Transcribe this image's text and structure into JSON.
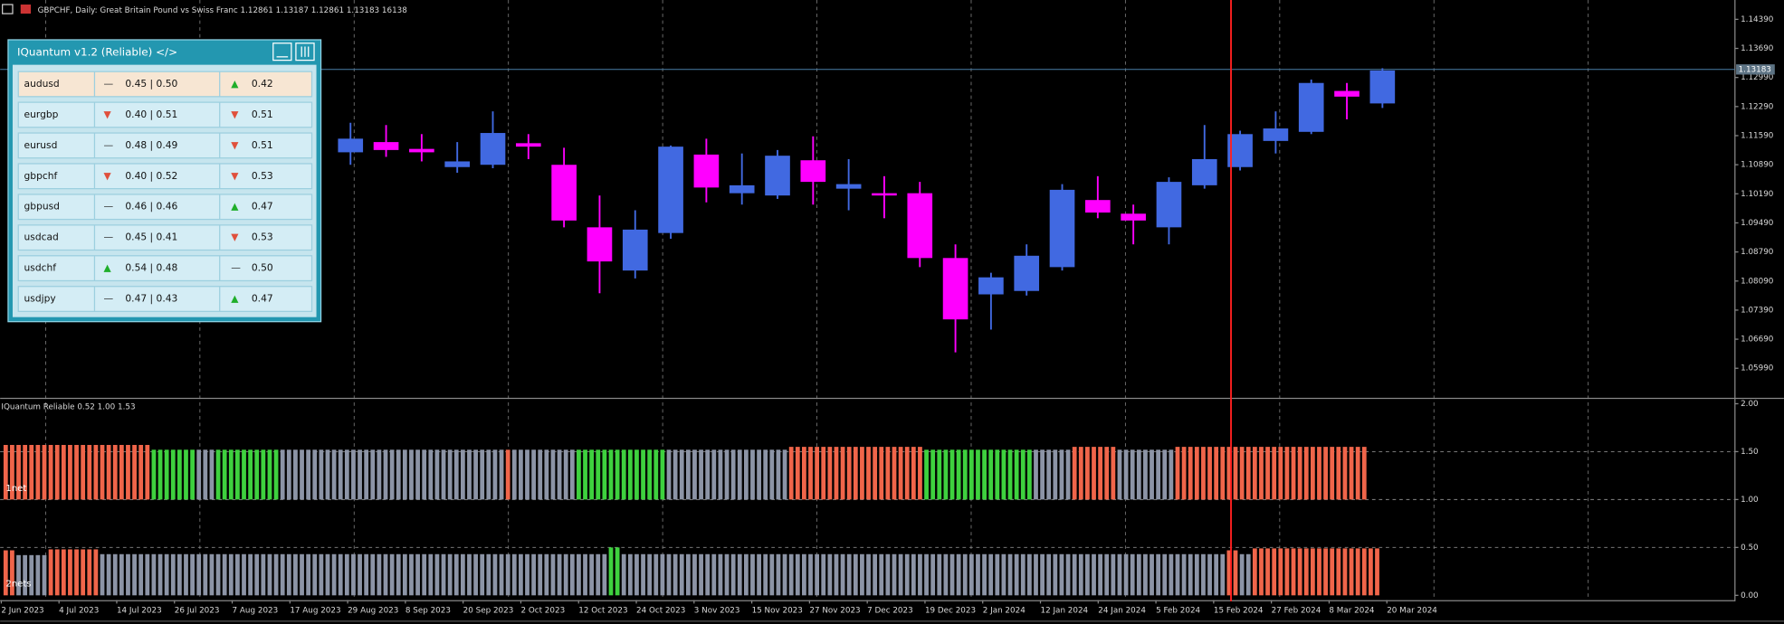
{
  "header": {
    "text": "GBPCHF, Daily:  Great Britain Pound vs Swiss Franc  1.12861 1.13187 1.12861 1.13183  16138"
  },
  "price_chart": {
    "type": "candlestick",
    "up_color": "#4169e1",
    "down_color": "#ff00ff",
    "ylim": [
      1.05279,
      1.14855
    ],
    "yticks": [
      {
        "value": 1.1439,
        "label": "1.14390"
      },
      {
        "value": 1.1369,
        "label": "1.13690"
      },
      {
        "value": 1.1299,
        "label": "1.12990"
      },
      {
        "value": 1.1229,
        "label": "1.12290"
      },
      {
        "value": 1.1159,
        "label": "1.11590"
      },
      {
        "value": 1.1089,
        "label": "1.10890"
      },
      {
        "value": 1.1019,
        "label": "1.10190"
      },
      {
        "value": 1.0949,
        "label": "1.09490"
      },
      {
        "value": 1.0879,
        "label": "1.08790"
      },
      {
        "value": 1.0809,
        "label": "1.08090"
      },
      {
        "value": 1.0739,
        "label": "1.07390"
      },
      {
        "value": 1.0669,
        "label": "1.06690"
      },
      {
        "value": 1.0599,
        "label": "1.05990"
      }
    ],
    "current_price": {
      "value": 1.13183,
      "label": "1.13183"
    },
    "candles": [
      {
        "open": 1.11189,
        "high": 1.119,
        "low": 1.10888,
        "close": 1.11517
      },
      {
        "open": 1.11435,
        "high": 1.11845,
        "low": 1.11079,
        "close": 1.11244
      },
      {
        "open": 1.11271,
        "high": 1.11627,
        "low": 1.1097,
        "close": 1.11189
      },
      {
        "open": 1.10833,
        "high": 1.11435,
        "low": 1.10696,
        "close": 1.1097
      },
      {
        "open": 1.10888,
        "high": 1.12174,
        "low": 1.10806,
        "close": 1.11654
      },
      {
        "open": 1.11408,
        "high": 1.11627,
        "low": 1.11025,
        "close": 1.11325
      },
      {
        "open": 1.10888,
        "high": 1.11298,
        "low": 1.09383,
        "close": 1.09547
      },
      {
        "open": 1.09383,
        "high": 1.10149,
        "low": 1.07796,
        "close": 1.08562
      },
      {
        "open": 1.08343,
        "high": 1.09793,
        "low": 1.08152,
        "close": 1.09328
      },
      {
        "open": 1.09246,
        "high": 1.11353,
        "low": 1.09109,
        "close": 1.11325
      },
      {
        "open": 1.11134,
        "high": 1.11517,
        "low": 1.09985,
        "close": 1.10341
      },
      {
        "open": 1.10204,
        "high": 1.11161,
        "low": 1.0993,
        "close": 1.10395
      },
      {
        "open": 1.10149,
        "high": 1.11244,
        "low": 1.10067,
        "close": 1.11107
      },
      {
        "open": 1.10997,
        "high": 1.11572,
        "low": 1.0993,
        "close": 1.10477
      },
      {
        "open": 1.10313,
        "high": 1.11025,
        "low": 1.09793,
        "close": 1.10423
      },
      {
        "open": 1.10204,
        "high": 1.10614,
        "low": 1.09602,
        "close": 1.10149
      },
      {
        "open": 1.10204,
        "high": 1.10477,
        "low": 1.08425,
        "close": 1.08644
      },
      {
        "open": 1.08644,
        "high": 1.08973,
        "low": 1.06373,
        "close": 1.07167
      },
      {
        "open": 1.07769,
        "high": 1.08289,
        "low": 1.06921,
        "close": 1.08179
      },
      {
        "open": 1.07851,
        "high": 1.08973,
        "low": 1.07741,
        "close": 1.08699
      },
      {
        "open": 1.08425,
        "high": 1.10423,
        "low": 1.08343,
        "close": 1.10286
      },
      {
        "open": 1.1004,
        "high": 1.10614,
        "low": 1.09602,
        "close": 1.09739
      },
      {
        "open": 1.09711,
        "high": 1.0993,
        "low": 1.08973,
        "close": 1.09547
      },
      {
        "open": 1.09383,
        "high": 1.10587,
        "low": 1.08973,
        "close": 1.10477
      },
      {
        "open": 1.10395,
        "high": 1.11845,
        "low": 1.10313,
        "close": 1.11025
      },
      {
        "open": 1.10833,
        "high": 1.11709,
        "low": 1.10751,
        "close": 1.11627
      },
      {
        "open": 1.11462,
        "high": 1.12174,
        "low": 1.11161,
        "close": 1.11763
      },
      {
        "open": 1.11681,
        "high": 1.1294,
        "low": 1.11627,
        "close": 1.12858
      },
      {
        "open": 1.12666,
        "high": 1.12858,
        "low": 1.11982,
        "close": 1.12529
      },
      {
        "open": 1.12365,
        "high": 1.13213,
        "low": 1.12256,
        "close": 1.13159
      }
    ]
  },
  "time_axis": {
    "labels": [
      "2 Jun 2023",
      "4 Jul 2023",
      "14 Jul 2023",
      "26 Jul 2023",
      "7 Aug 2023",
      "17 Aug 2023",
      "29 Aug 2023",
      "8 Sep 2023",
      "20 Sep 2023",
      "2 Oct 2023",
      "12 Oct 2023",
      "24 Oct 2023",
      "3 Nov 2023",
      "15 Nov 2023",
      "27 Nov 2023",
      "7 Dec 2023",
      "19 Dec 2023",
      "2 Jan 2024",
      "12 Jan 2024",
      "24 Jan 2024",
      "5 Feb 2024",
      "15 Feb 2024",
      "27 Feb 2024",
      "8 Mar 2024",
      "20 Mar 2024"
    ]
  },
  "indicator": {
    "title": "IQuantum Reliable 0.52 1.00 1.53",
    "ylim": [
      -0.05,
      2.05
    ],
    "grid": true,
    "yticks": [
      {
        "value": 2,
        "label": "2.00"
      },
      {
        "value": 1.5,
        "label": "1.50"
      },
      {
        "value": 1,
        "label": "1.00"
      },
      {
        "value": 0.5,
        "label": "0.50"
      },
      {
        "value": 0,
        "label": "0.00"
      }
    ],
    "rows": [
      {
        "label": "1net",
        "base": 1,
        "runs": [
          {
            "color": "#f0654a",
            "count": 23,
            "value": 1.57
          },
          {
            "color": "#3ed13e",
            "count": 7,
            "value": 1.52
          },
          {
            "color": "#8c94a6",
            "count": 3,
            "value": 1.52
          },
          {
            "color": "#3ed13e",
            "count": 10,
            "value": 1.52
          },
          {
            "color": "#8c94a6",
            "count": 35,
            "value": 1.52
          },
          {
            "color": "#f0654a",
            "count": 1,
            "value": 1.52
          },
          {
            "color": "#8c94a6",
            "count": 10,
            "value": 1.52
          },
          {
            "color": "#3ed13e",
            "count": 14,
            "value": 1.52
          },
          {
            "color": "#8c94a6",
            "count": 19,
            "value": 1.52
          },
          {
            "color": "#f0654a",
            "count": 21,
            "value": 1.55
          },
          {
            "color": "#3ed13e",
            "count": 17,
            "value": 1.52
          },
          {
            "color": "#8c94a6",
            "count": 6,
            "value": 1.52
          },
          {
            "color": "#f0654a",
            "count": 7,
            "value": 1.55
          },
          {
            "color": "#8c94a6",
            "count": 9,
            "value": 1.52
          },
          {
            "color": "#f0654a",
            "count": 30,
            "value": 1.55
          }
        ]
      },
      {
        "label": "2nets",
        "base": 0,
        "runs": [
          {
            "color": "#f0654a",
            "count": 2,
            "value": 0.47
          },
          {
            "color": "#8c94a6",
            "count": 5,
            "value": 0.42
          },
          {
            "color": "#f0654a",
            "count": 8,
            "value": 0.48
          },
          {
            "color": "#8c94a6",
            "count": 79,
            "value": 0.43
          },
          {
            "color": "#3ed13e",
            "count": 2,
            "value": 0.5
          },
          {
            "color": "#8c94a6",
            "count": 94,
            "value": 0.43
          },
          {
            "color": "#f0654a",
            "count": 2,
            "value": 0.47
          },
          {
            "color": "#8c94a6",
            "count": 2,
            "value": 0.43
          },
          {
            "color": "#f0654a",
            "count": 20,
            "value": 0.49
          }
        ]
      }
    ]
  },
  "panel": {
    "title": "IQuantum v1.2 (Reliable) </>",
    "rows": [
      {
        "pair": "audusd",
        "trend1": "—",
        "scores": "0.45 | 0.50",
        "trend2": "▲",
        "score": "0.42"
      },
      {
        "pair": "eurgbp",
        "trend1": "▼",
        "scores": "0.40 | 0.51",
        "trend2": "▼",
        "score": "0.51"
      },
      {
        "pair": "eurusd",
        "trend1": "—",
        "scores": "0.48 | 0.49",
        "trend2": "▼",
        "score": "0.51"
      },
      {
        "pair": "gbpchf",
        "trend1": "▼",
        "scores": "0.40 | 0.52",
        "trend2": "▼",
        "score": "0.53"
      },
      {
        "pair": "gbpusd",
        "trend1": "—",
        "scores": "0.46 | 0.46",
        "trend2": "▲",
        "score": "0.47"
      },
      {
        "pair": "usdcad",
        "trend1": "—",
        "scores": "0.45 | 0.41",
        "trend2": "▼",
        "score": "0.53"
      },
      {
        "pair": "usdchf",
        "trend1": "▲",
        "scores": "0.54 | 0.48",
        "trend2": "—",
        "score": "0.50"
      },
      {
        "pair": "usdjpy",
        "trend1": "—",
        "scores": "0.47 | 0.43",
        "trend2": "▲",
        "score": "0.47"
      }
    ]
  }
}
